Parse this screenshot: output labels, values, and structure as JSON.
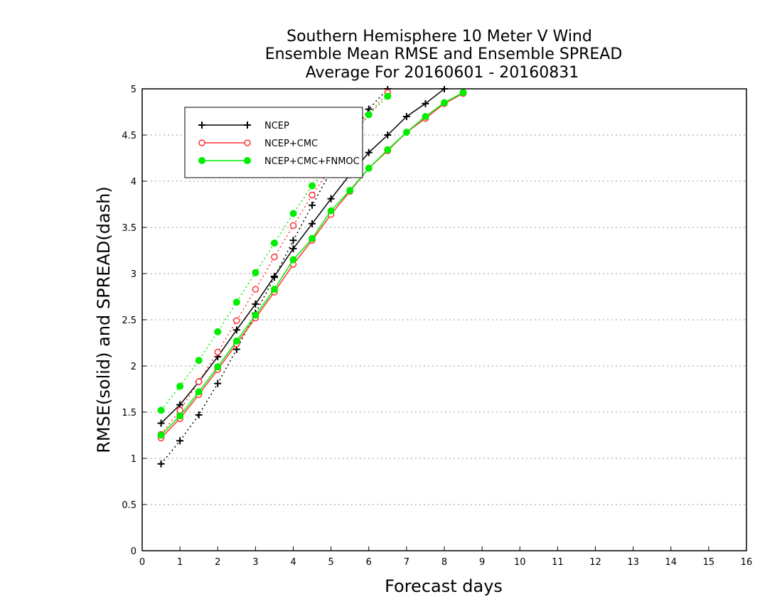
{
  "chart_data": {
    "type": "line",
    "title": [
      "Southern Hemisphere 10 Meter V Wind",
      "Ensemble Mean RMSE and Ensemble SPREAD",
      "Average For 20160601 - 20160831"
    ],
    "xlabel": "Forecast days",
    "ylabel": "RMSE(solid) and SPREAD(dash)",
    "xlim": [
      0,
      16
    ],
    "ylim": [
      0,
      5
    ],
    "xticks": [
      "0",
      "1",
      "2",
      "3",
      "4",
      "5",
      "6",
      "7",
      "8",
      "9",
      "10",
      "11",
      "12",
      "13",
      "14",
      "15",
      "16"
    ],
    "yticks": [
      "0",
      "0.5",
      "1",
      "1.5",
      "2",
      "2.5",
      "3",
      "3.5",
      "4",
      "4.5",
      "5"
    ],
    "grid": "horizontal dotted",
    "legend_position": "top-left",
    "series": [
      {
        "name": "NCEP",
        "color": "#000000",
        "marker": "plus",
        "style": "solid",
        "x": [
          0.5,
          1,
          1.5,
          2,
          2.5,
          3,
          3.5,
          4,
          4.5,
          5,
          5.5,
          6,
          6.5,
          7,
          7.5,
          8
        ],
        "y": [
          1.38,
          1.58,
          1.83,
          2.1,
          2.39,
          2.67,
          2.97,
          3.27,
          3.54,
          3.81,
          4.07,
          4.31,
          4.5,
          4.7,
          4.84,
          5.0
        ]
      },
      {
        "name": "NCEP",
        "color": "#000000",
        "marker": "plus",
        "style": "dash",
        "x": [
          0.5,
          1,
          1.5,
          2,
          2.5,
          3,
          3.5,
          4,
          4.5,
          5,
          5.5,
          6,
          6.5
        ],
        "y": [
          0.94,
          1.19,
          1.47,
          1.81,
          2.18,
          2.57,
          2.96,
          3.36,
          3.74,
          4.11,
          4.46,
          4.78,
          5.0
        ]
      },
      {
        "name": "NCEP+CMC",
        "color": "#ff3333",
        "marker": "open-circle",
        "style": "solid",
        "x": [
          0.5,
          1,
          1.5,
          2,
          2.5,
          3,
          3.5,
          4,
          4.5,
          5,
          5.5,
          6,
          6.5,
          7,
          7.5,
          8,
          8.5
        ],
        "y": [
          1.22,
          1.43,
          1.69,
          1.96,
          2.24,
          2.52,
          2.8,
          3.1,
          3.36,
          3.64,
          3.89,
          4.14,
          4.33,
          4.53,
          4.68,
          4.84,
          4.95
        ]
      },
      {
        "name": "NCEP+CMC",
        "color": "#ff3333",
        "marker": "open-circle",
        "style": "dash",
        "x": [
          0.5,
          1,
          1.5,
          2,
          2.5,
          3,
          3.5,
          4,
          4.5,
          5,
          5.5,
          6,
          6.5
        ],
        "y": [
          1.26,
          1.52,
          1.83,
          2.15,
          2.49,
          2.83,
          3.18,
          3.52,
          3.85,
          4.15,
          4.45,
          4.72,
          4.96
        ]
      },
      {
        "name": "NCEP+CMC+FNMOC",
        "color": "#00ee00",
        "marker": "filled-circle",
        "style": "solid",
        "x": [
          0.5,
          1,
          1.5,
          2,
          2.5,
          3,
          3.5,
          4,
          4.5,
          5,
          5.5,
          6,
          6.5,
          7,
          7.5,
          8,
          8.5
        ],
        "y": [
          1.25,
          1.46,
          1.72,
          1.99,
          2.27,
          2.55,
          2.83,
          3.15,
          3.38,
          3.68,
          3.9,
          4.14,
          4.34,
          4.53,
          4.7,
          4.85,
          4.96
        ]
      },
      {
        "name": "NCEP+CMC+FNMOC",
        "color": "#00ee00",
        "marker": "filled-circle",
        "style": "dash",
        "x": [
          0.5,
          1,
          1.5,
          2,
          2.5,
          3,
          3.5,
          4,
          4.5,
          5,
          5.5,
          6,
          6.5
        ],
        "y": [
          1.52,
          1.78,
          2.06,
          2.37,
          2.69,
          3.01,
          3.33,
          3.65,
          3.95,
          4.22,
          4.48,
          4.72,
          4.92
        ]
      }
    ],
    "legend": [
      {
        "label": "NCEP",
        "color": "#000000",
        "marker": "plus"
      },
      {
        "label": "NCEP+CMC",
        "color": "#ff3333",
        "marker": "open-circle"
      },
      {
        "label": "NCEP+CMC+FNMOC",
        "color": "#00ee00",
        "marker": "filled-circle"
      }
    ]
  }
}
